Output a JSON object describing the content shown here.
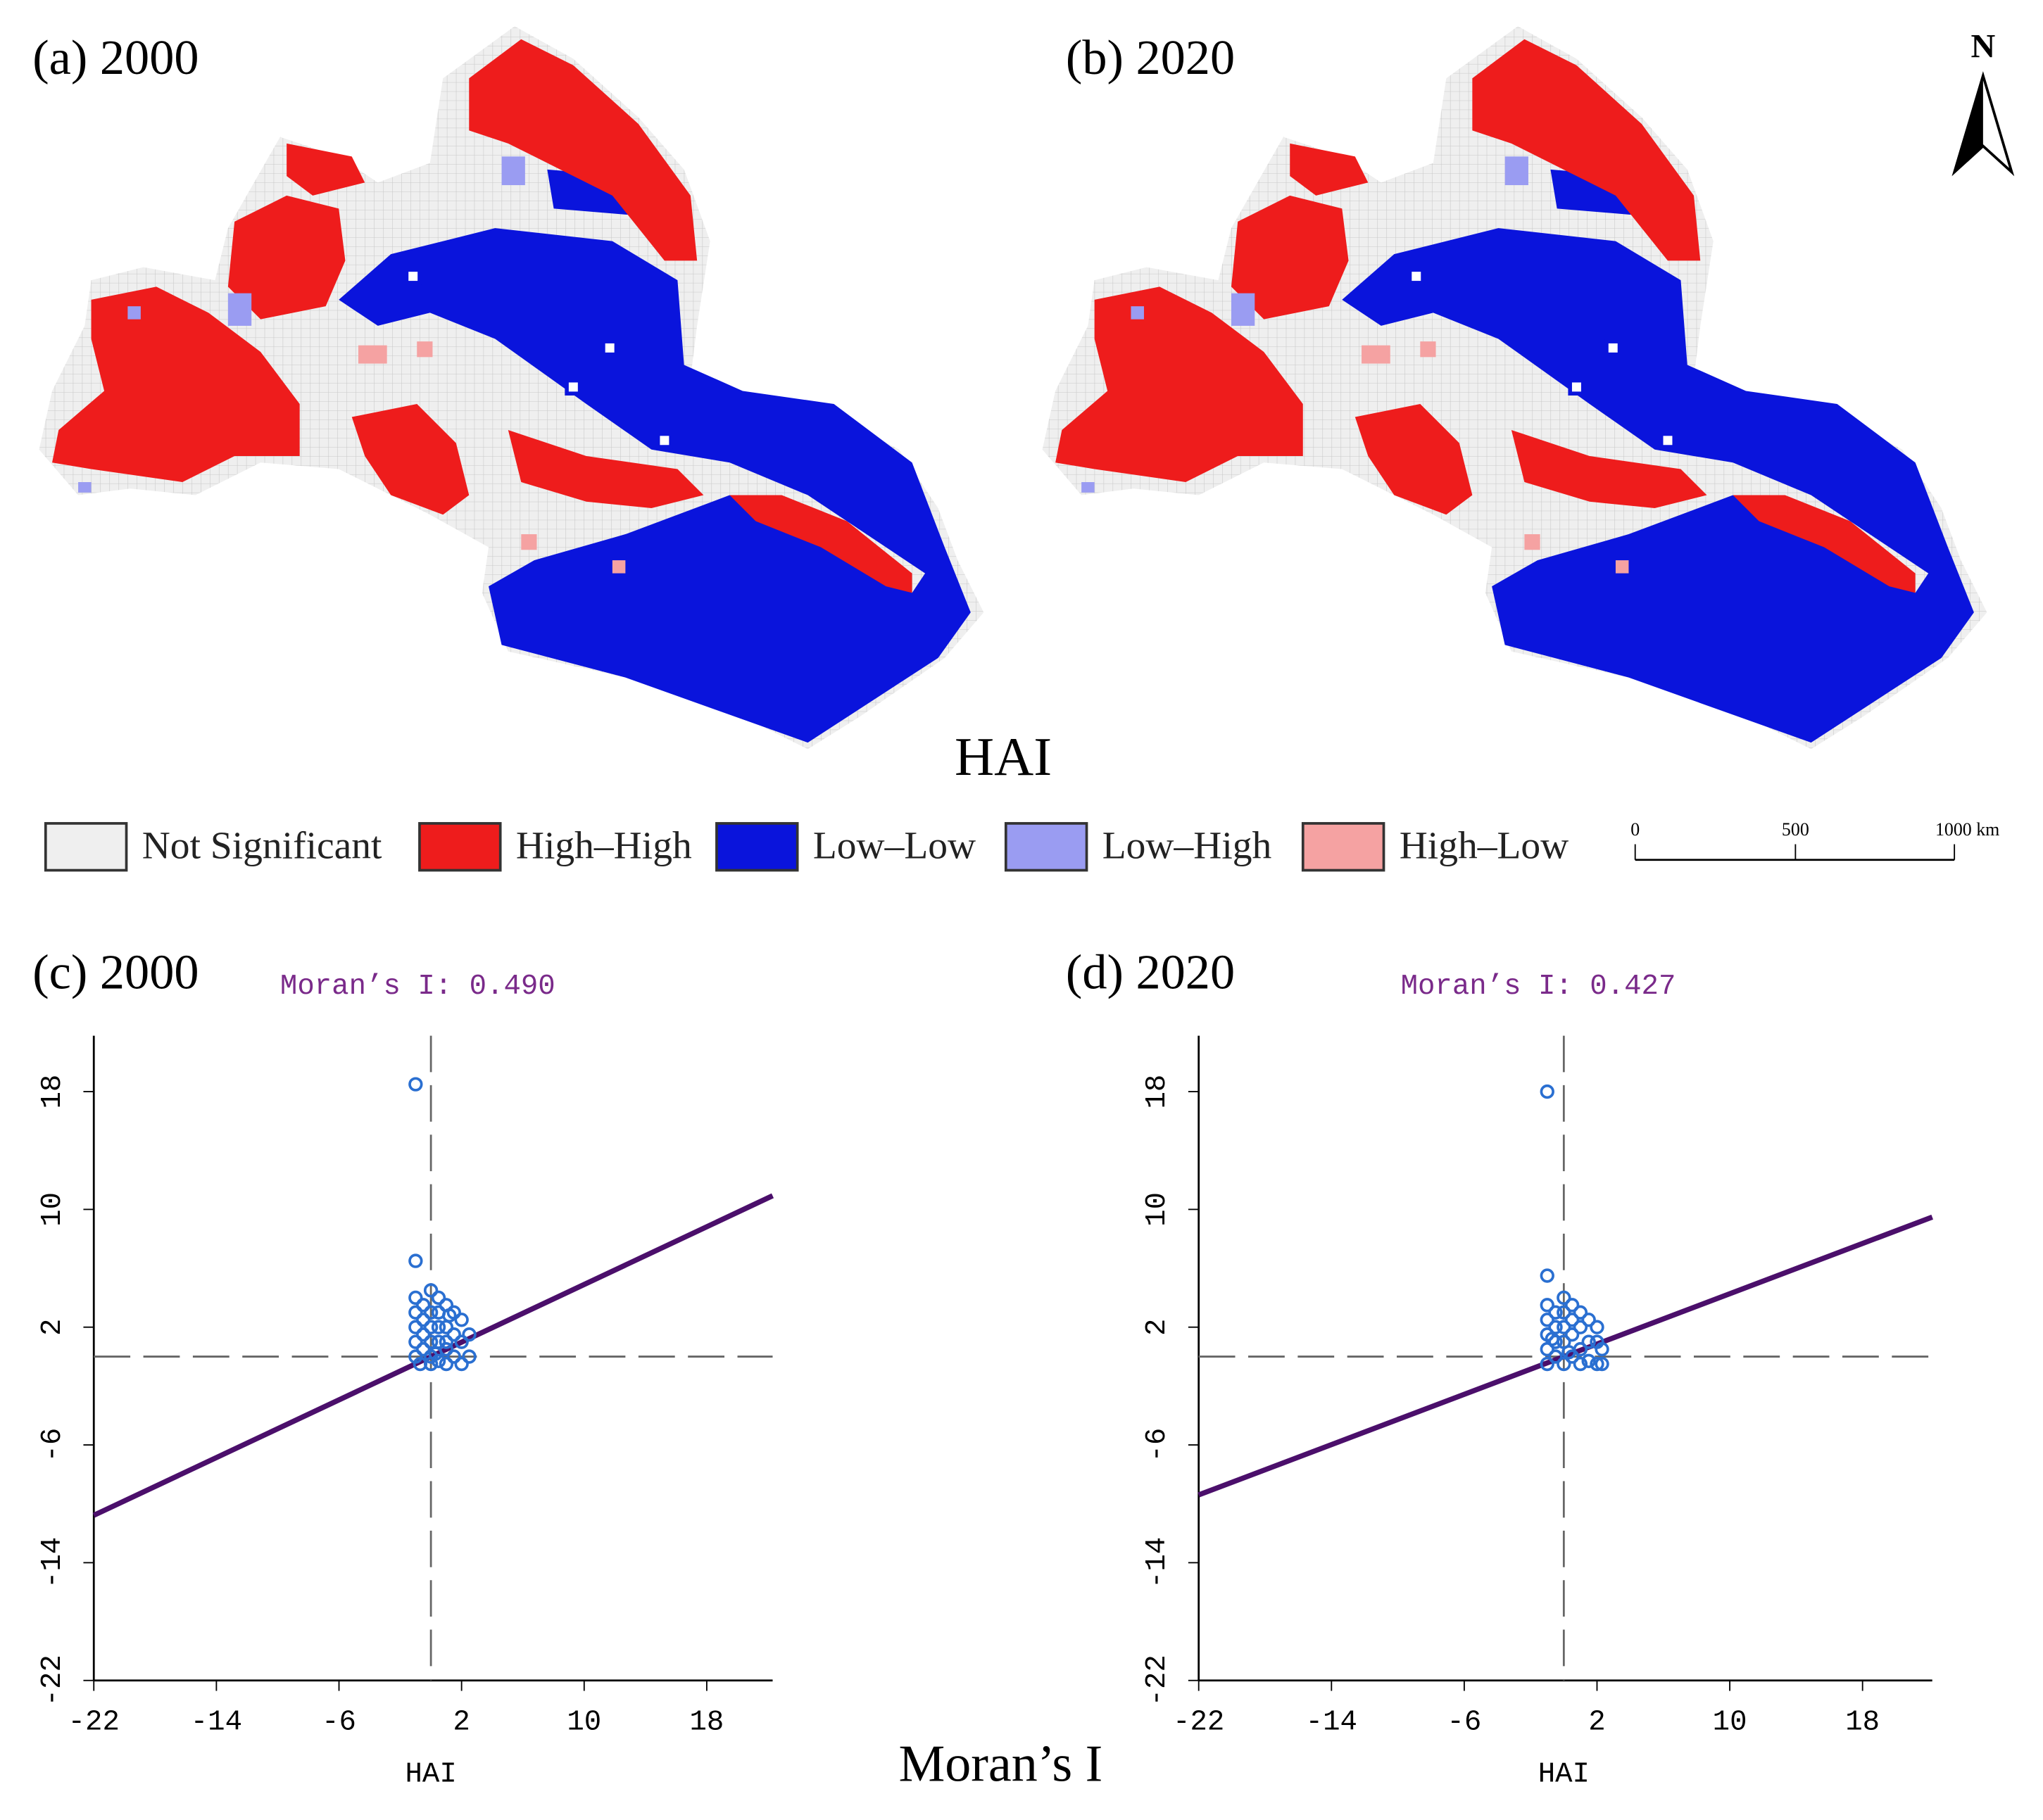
{
  "maps": {
    "panels": [
      {
        "label": "(a) 2000"
      },
      {
        "label": "(b)  2020"
      }
    ],
    "title": "HAI",
    "north": "N",
    "legend": [
      {
        "name": "Not Significant",
        "color": "#efefef"
      },
      {
        "name": "High–High",
        "color": "#ee1c1c"
      },
      {
        "name": "Low–Low",
        "color": "#0a14dc"
      },
      {
        "name": "Low–High",
        "color": "#9a9cf2"
      },
      {
        "name": "High–Low",
        "color": "#f5a2a2"
      }
    ],
    "scale_labels": [
      "0",
      "500",
      "1000 km"
    ]
  },
  "chart_data": [
    {
      "type": "scatter",
      "title": "(c) 2000",
      "subtitle": "Moran’s I: 0.490",
      "x_label": "HAI",
      "regression_slope": 0.49,
      "reference_x": 0,
      "reference_y": 0,
      "color": "#2a6fd1",
      "line_color": "#4b0f6b",
      "xlim": [
        -22,
        22.3
      ],
      "ylim": [
        -22,
        21.8
      ],
      "xticks": [
        -22,
        -14,
        -6,
        2,
        10,
        18
      ],
      "yticks": [
        -22,
        -14,
        -6,
        2,
        10,
        18
      ],
      "x": [
        -1,
        -1,
        -1,
        -1,
        -1,
        -1,
        -1,
        -0.5,
        -0.5,
        -0.5,
        -0.5,
        0,
        0,
        0,
        0,
        0,
        0,
        0.5,
        0.5,
        0.5,
        0.5,
        0.5,
        1,
        1,
        1,
        1,
        1,
        1.5,
        1.5,
        1.5,
        2,
        2,
        2,
        2.5,
        2.5,
        -0.7,
        0.3,
        1.2
      ],
      "y": [
        18.5,
        6.5,
        4,
        3,
        2,
        1,
        0,
        3.5,
        2.5,
        1.5,
        0.5,
        4.5,
        3,
        2,
        1,
        0,
        -0.5,
        4,
        3,
        2,
        1,
        -0.3,
        3.5,
        2,
        0.5,
        -0.5,
        1,
        3,
        1.5,
        0,
        2.5,
        1,
        -0.5,
        0,
        1.5,
        -0.5,
        0.2,
        2.8
      ]
    },
    {
      "type": "scatter",
      "title": "(d)  2020",
      "subtitle": "Moran’s I: 0.427",
      "x_label": "HAI",
      "regression_slope": 0.427,
      "reference_x": 0,
      "reference_y": 0,
      "color": "#2a6fd1",
      "line_color": "#4b0f6b",
      "xlim": [
        -22,
        22.2
      ],
      "ylim": [
        -22,
        21.8
      ],
      "xticks": [
        -22,
        -14,
        -6,
        2,
        10,
        18
      ],
      "yticks": [
        -22,
        -14,
        -6,
        2,
        10,
        18
      ],
      "x": [
        -1,
        -1,
        -1,
        -1,
        -1,
        -1,
        -1,
        -0.5,
        -0.5,
        -0.5,
        -0.5,
        0,
        0,
        0,
        0,
        0,
        0.5,
        0.5,
        0.5,
        0.5,
        1,
        1,
        1,
        1,
        1.5,
        1.5,
        1.5,
        2,
        2,
        2,
        2.3,
        2.3,
        -0.7,
        0.3
      ],
      "y": [
        18,
        5.5,
        3.5,
        2.5,
        1.5,
        0.5,
        -0.5,
        3,
        2,
        1,
        0,
        4,
        3,
        2,
        1,
        -0.5,
        3.5,
        2.5,
        1.5,
        0,
        3,
        2,
        0.5,
        -0.5,
        2.5,
        1,
        -0.3,
        2,
        1,
        -0.5,
        0.5,
        -0.5,
        1.2,
        0.3
      ]
    }
  ],
  "footer": "Moran’s I"
}
